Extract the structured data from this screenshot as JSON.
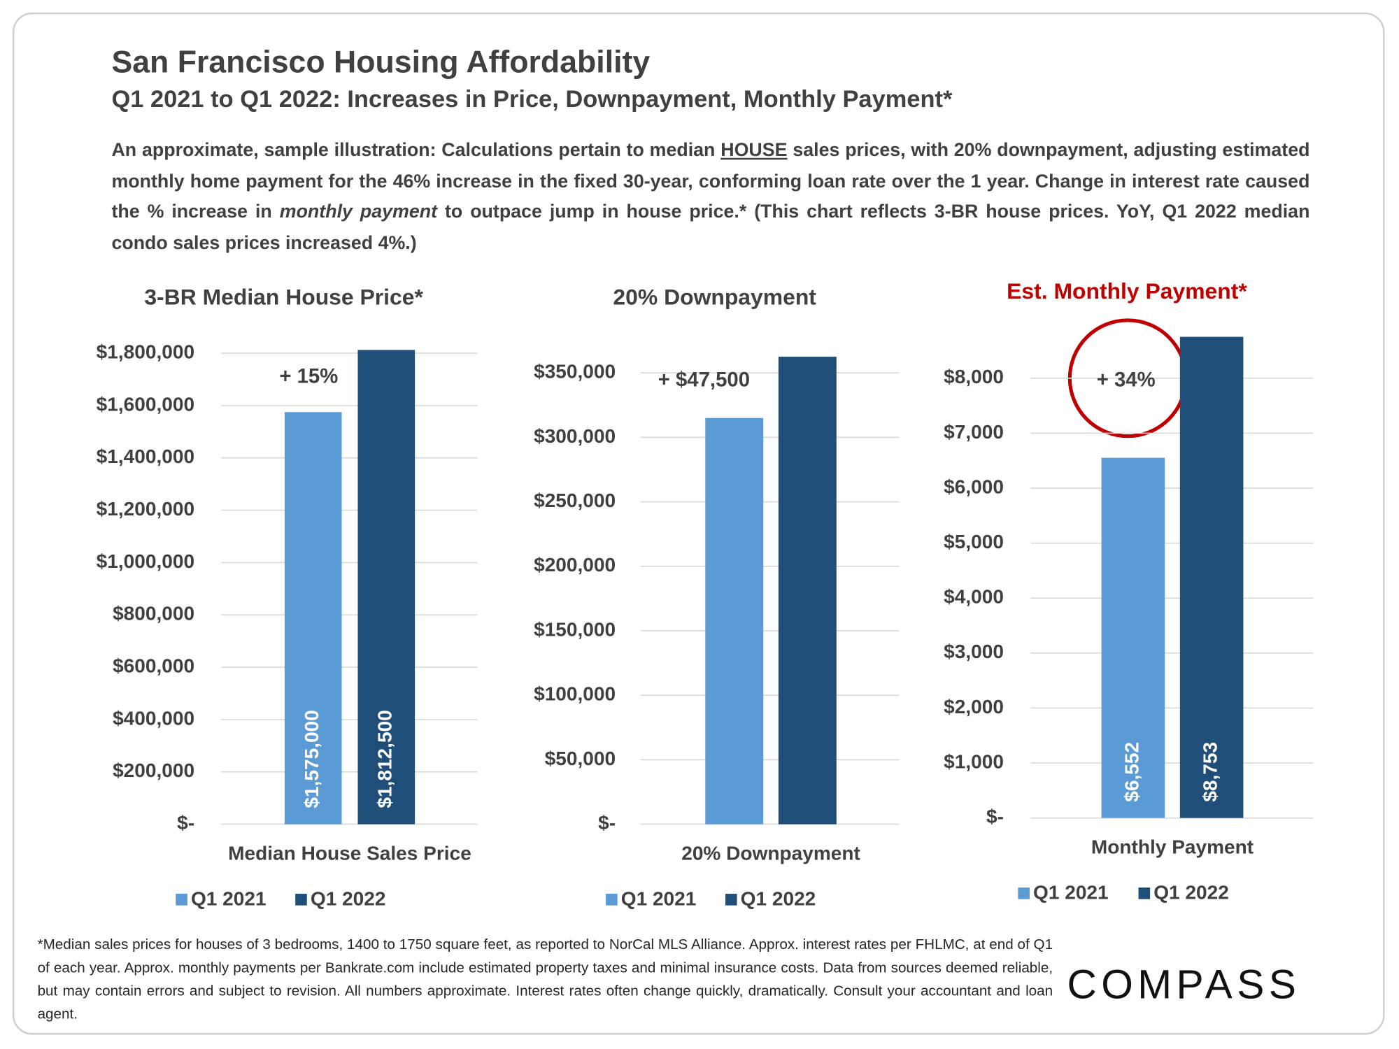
{
  "title": "San Francisco Housing Affordability",
  "subtitle": "Q1 2021 to Q1 2022: Increases in Price, Downpayment, Monthly Payment*",
  "description": [
    "An approximate, sample illustration: Calculations pertain to median ",
    "HOUSE",
    " sales prices, with 20% downpayment, adjusting estimated monthly home payment for the 46% increase in the fixed 30-year, conforming loan rate over the 1 year. Change in interest rate caused the % increase in ",
    "monthly payment",
    " to outpace jump in house price.* (This chart reflects 3-BR house prices. YoY, Q1 2022 median condo sales prices increased 4%.)"
  ],
  "footnote": "*Median sales prices for houses of 3 bedrooms, 1400 to 1750 square feet, as reported to NorCal MLS Alliance. Approx. interest rates per FHLMC, at end of Q1 of each year. Approx. monthly payments per Bankrate.com include estimated property taxes and minimal insurance costs. Data from sources deemed reliable, but may contain errors and subject to revision. All numbers approximate. Interest rates often change quickly, dramatically. Consult your accountant and loan agent.",
  "logo": "COMPASS",
  "chart_data": [
    {
      "type": "bar",
      "title": "3-BR Median House Price*",
      "title_color": "#404040",
      "annotation": "+ 15%",
      "categories": [
        "Median House Sales Price"
      ],
      "series": [
        {
          "name": "Q1 2021",
          "color": "#5b9bd5",
          "values": [
            1575000
          ],
          "value_labels": [
            "$1,575,000"
          ]
        },
        {
          "name": "Q1 2022",
          "color": "#1f4e79",
          "values": [
            1812500
          ],
          "value_labels": [
            "$1,812,500"
          ]
        }
      ],
      "ylim": [
        0,
        1800000
      ],
      "yticks": [
        {
          "value": 0,
          "label": "$-"
        },
        {
          "value": 200000,
          "label": "$200,000"
        },
        {
          "value": 400000,
          "label": "$400,000"
        },
        {
          "value": 600000,
          "label": "$600,000"
        },
        {
          "value": 800000,
          "label": "$800,000"
        },
        {
          "value": 1000000,
          "label": "$1,000,000"
        },
        {
          "value": 1200000,
          "label": "$1,200,000"
        },
        {
          "value": 1400000,
          "label": "$1,400,000"
        },
        {
          "value": 1600000,
          "label": "$1,600,000"
        },
        {
          "value": 1800000,
          "label": "$1,800,000"
        }
      ],
      "grid": true,
      "legend": "bottom"
    },
    {
      "type": "bar",
      "title": "20% Downpayment",
      "title_color": "#404040",
      "annotation": "+ $47,500",
      "categories": [
        "20% Downpayment"
      ],
      "series": [
        {
          "name": "Q1 2021",
          "color": "#5b9bd5",
          "values": [
            315000
          ]
        },
        {
          "name": "Q1 2022",
          "color": "#1f4e79",
          "values": [
            362500
          ]
        }
      ],
      "ylim": [
        0,
        350000
      ],
      "yticks": [
        {
          "value": 0,
          "label": "$-"
        },
        {
          "value": 50000,
          "label": "$50,000"
        },
        {
          "value": 100000,
          "label": "$100,000"
        },
        {
          "value": 150000,
          "label": "$150,000"
        },
        {
          "value": 200000,
          "label": "$200,000"
        },
        {
          "value": 250000,
          "label": "$250,000"
        },
        {
          "value": 300000,
          "label": "$300,000"
        },
        {
          "value": 350000,
          "label": "$350,000"
        }
      ],
      "grid": true,
      "legend": "bottom"
    },
    {
      "type": "bar",
      "title": "Est. Monthly Payment*",
      "title_color": "#c00000",
      "annotation": "+ 34%",
      "categories": [
        "Monthly Payment"
      ],
      "series": [
        {
          "name": "Q1 2021",
          "color": "#5b9bd5",
          "values": [
            6552
          ],
          "value_labels": [
            "$6,552"
          ]
        },
        {
          "name": "Q1 2022",
          "color": "#1f4e79",
          "values": [
            8753
          ],
          "value_labels": [
            "$8,753"
          ]
        }
      ],
      "ylim": [
        0,
        8000
      ],
      "yticks": [
        {
          "value": 0,
          "label": "$-"
        },
        {
          "value": 1000,
          "label": "$1,000"
        },
        {
          "value": 2000,
          "label": "$2,000"
        },
        {
          "value": 3000,
          "label": "$3,000"
        },
        {
          "value": 4000,
          "label": "$4,000"
        },
        {
          "value": 5000,
          "label": "$5,000"
        },
        {
          "value": 6000,
          "label": "$6,000"
        },
        {
          "value": 7000,
          "label": "$7,000"
        },
        {
          "value": 8000,
          "label": "$8,000"
        }
      ],
      "grid": true,
      "legend": "bottom"
    }
  ]
}
